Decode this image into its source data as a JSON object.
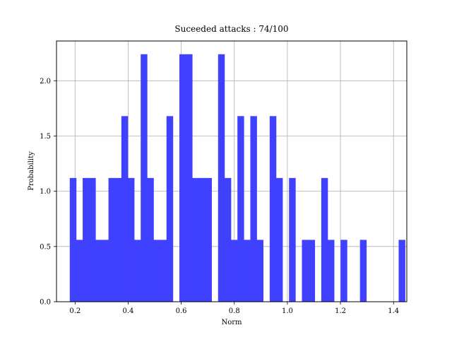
{
  "chart_data": {
    "type": "bar",
    "subtype": "histogram",
    "title": "Suceeded attacks : 74/100",
    "xlabel": "Norm",
    "ylabel": "Probability",
    "xlim": [
      0.13,
      1.45
    ],
    "ylim": [
      0,
      2.36
    ],
    "xticks": [
      0.2,
      0.4,
      0.6,
      0.8,
      1.0,
      1.2,
      1.4
    ],
    "xtick_labels": [
      "0.2",
      "0.4",
      "0.6",
      "0.8",
      "1.0",
      "1.2",
      "1.4"
    ],
    "yticks": [
      0,
      0.5,
      1.0,
      1.5,
      2.0
    ],
    "ytick_labels": [
      "0.0",
      "0.5",
      "1.0",
      "1.5",
      "2.0"
    ],
    "grid": true,
    "bar_color": "#4040ff",
    "bin_start": 0.18,
    "bin_width": 0.0243,
    "values": [
      1.12,
      0.56,
      1.12,
      1.12,
      0.56,
      0.56,
      1.12,
      1.12,
      1.68,
      1.12,
      0.56,
      2.24,
      1.12,
      0.56,
      0.56,
      1.68,
      0,
      2.24,
      2.24,
      1.12,
      1.12,
      1.12,
      0,
      2.24,
      1.12,
      0.56,
      1.68,
      0.56,
      1.68,
      0.56,
      0,
      1.68,
      1.12,
      0,
      1.12,
      0,
      0.56,
      0.56,
      0,
      1.12,
      0.56,
      0,
      0.56,
      0,
      0,
      0.56,
      0,
      0,
      0,
      0,
      0,
      0.56
    ]
  }
}
